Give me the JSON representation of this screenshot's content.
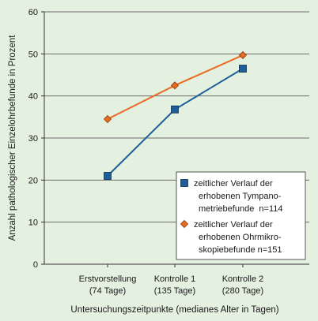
{
  "chart_data": {
    "type": "line",
    "xlabel": "Untersuchungszeitpunkte (medianes Alter in Tagen)",
    "ylabel": "Anzahl pathologischer Einzelohrbefunde in Prozent",
    "ylim": [
      0,
      60
    ],
    "yticks": [
      0,
      10,
      20,
      30,
      40,
      50,
      60
    ],
    "grid": true,
    "legend_position": "bottom-right",
    "categories": [
      [
        "Erstvorstellung",
        "(74 Tage)"
      ],
      [
        "Kontrolle 1",
        "(135 Tage)"
      ],
      [
        "Kontrolle 2",
        "(280 Tage)"
      ]
    ],
    "series": [
      {
        "name": "zeitlicher Verlauf der erhobenen Tympano-metriebefunde n=114",
        "legend_lines": [
          "zeitlicher Verlauf der",
          "erhobenen Tympano-",
          "metriebefunde  n=114"
        ],
        "marker": "square",
        "color": "#1f5f99",
        "values": [
          21,
          36.8,
          46.5
        ]
      },
      {
        "name": "zeitlicher Verlauf der erhobenen Ohrmikro-skopiebefunde n=151",
        "legend_lines": [
          "zeitlicher Verlauf der",
          "erhobenen Ohrmikro-",
          "skopiebefunde n=151"
        ],
        "marker": "diamond",
        "color": "#e86c22",
        "values": [
          34.5,
          42.5,
          49.7
        ]
      }
    ]
  }
}
